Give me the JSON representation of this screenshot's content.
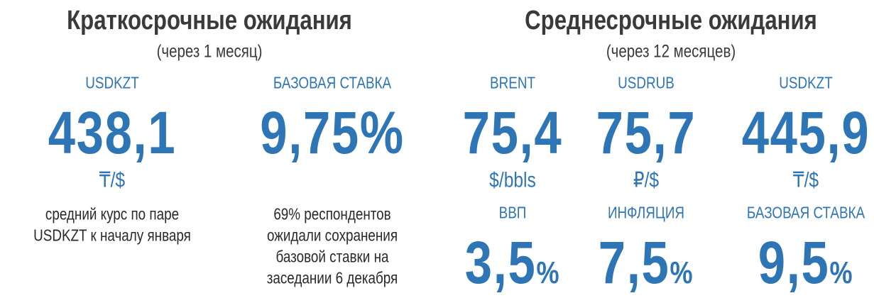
{
  "short_term": {
    "title": "Краткосрочные ожидания",
    "subtitle": "(через 1 месяц)",
    "items": [
      {
        "label": "USDKZT",
        "value": "438,1",
        "unit": "₸/$",
        "note": [
          "средний курс по паре",
          "USDKZT к началу января"
        ]
      },
      {
        "label": "БАЗОВАЯ СТАВКА",
        "value": "9,75%",
        "note": [
          "69% респондентов",
          "ожидали сохранения",
          "базовой ставки на",
          "заседании 6 декабря"
        ]
      }
    ]
  },
  "medium_term": {
    "title": "Среднесрочные ожидания",
    "subtitle": "(через 12 месяцев)",
    "items": [
      {
        "label": "BRENT",
        "value": "75,4",
        "unit": "$/bbls"
      },
      {
        "label": "USDRUB",
        "value": "75,7",
        "unit": "₽/$"
      },
      {
        "label": "USDKZT",
        "value": "445,9",
        "unit": "₸/$"
      }
    ],
    "percent_items": [
      {
        "label": "ВВП",
        "value": "3,5",
        "unit": "%"
      },
      {
        "label": "ИНФЛЯЦИЯ",
        "value": "7,5",
        "unit": "%"
      },
      {
        "label": "БАЗОВАЯ СТАВКА",
        "value": "9,5",
        "unit": "%"
      }
    ]
  }
}
